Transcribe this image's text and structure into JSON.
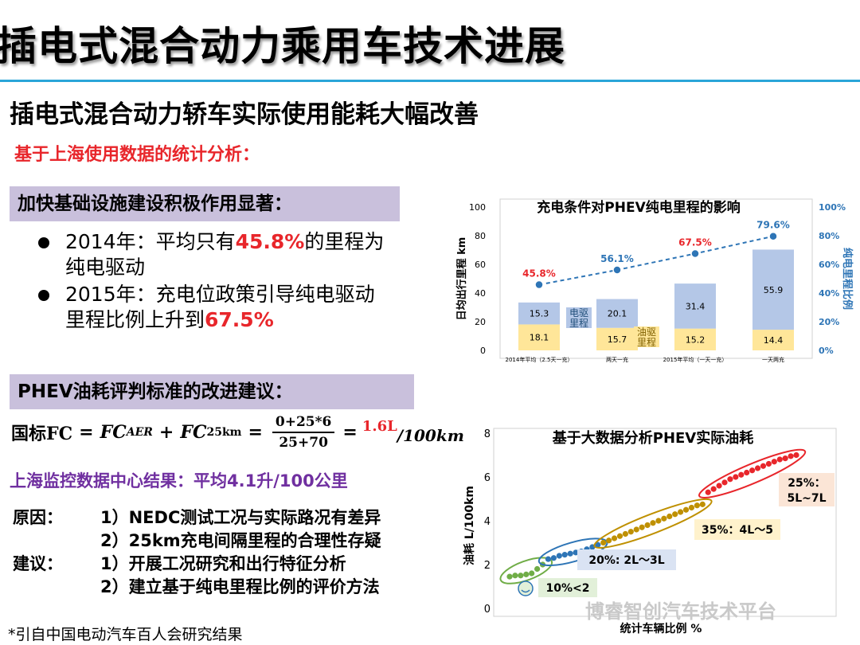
{
  "title": "插电式混合动力乘用车技术进展",
  "subtitle": "插电式混合动力轿车实际使用能耗大幅改善",
  "analysis_line": "基于上海使用数据的统计分析：",
  "section1": {
    "heading": "加快基础设施建设积极作用显著：",
    "bullets": [
      {
        "pre": "2014年：平均只有",
        "highlight": "45.8%",
        "post": "的里程为纯电驱动"
      },
      {
        "pre": "2015年：充电位政策引导纯电驱动里程比例上升到",
        "highlight": "67.5%",
        "post": ""
      }
    ]
  },
  "section2": {
    "heading": "PHEV油耗评判标准的改进建议：",
    "formula": {
      "lhs": "国标FC",
      "eq": "=",
      "term1": "FC",
      "term1_sub": "AER",
      "plus": "+",
      "term2": "FC",
      "term2_sub": "25km",
      "eq2": "=",
      "numerator": "0+25*6",
      "denominator": "25+70",
      "eq3": "=",
      "result": "1.6L",
      "unit": "/100km"
    },
    "shanghai_result": "上海监控数据中心结果：平均4.1升/100公里",
    "reasons_label": "原因：",
    "reasons": [
      "1）NEDC测试工况与实际路况有差异",
      "2）25km充电间隔里程的合理性存疑"
    ],
    "advice_label": "建议：",
    "advice": [
      "1）开展工况研究和出行特征分析",
      "2）建立基于纯电里程比例的评价方法"
    ]
  },
  "footnote": "*引自中国电动汽车百人会研究结果",
  "watermark": "博睿智创汽车技术平台",
  "colors": {
    "accent_blue": "#2aa5d8",
    "highlight_red": "#e8262b",
    "purple": "#7030a0",
    "band": "#c9c0dc",
    "bar_elec": "#b4c7e7",
    "bar_fuel": "#ffe699",
    "line_blue": "#2e75b6"
  },
  "chart_data": [
    {
      "type": "bar",
      "title": "充电条件对PHEV纯电里程的影响",
      "ylabel": "日均出行里程 km",
      "y2label": "纯电里程比例",
      "ylim": [
        0,
        100
      ],
      "y2lim": [
        0,
        100
      ],
      "y_ticks": [
        "0",
        "20",
        "40",
        "60",
        "80",
        "100"
      ],
      "y2_ticks": [
        "0%",
        "20%",
        "40%",
        "60%",
        "80%",
        "100%"
      ],
      "categories": [
        "2014年平均（2.5天一充）",
        "两天一充",
        "2015年平均（一天一充）",
        "一天两充"
      ],
      "series": [
        {
          "name": "油驱里程",
          "values": [
            18.1,
            15.7,
            15.2,
            14.4
          ]
        },
        {
          "name": "电驱里程",
          "values": [
            15.3,
            20.1,
            31.4,
            55.9
          ]
        }
      ],
      "ratio_line": {
        "values": [
          45.8,
          56.1,
          67.5,
          79.6
        ],
        "labels": [
          "45.8%",
          "56.1%",
          "67.5%",
          "79.6%"
        ]
      }
    },
    {
      "type": "scatter",
      "title": "基于大数据分析PHEV实际油耗",
      "xlabel": "统计车辆比例 %",
      "ylabel": "油耗 L/100km",
      "ylim": [
        0,
        8
      ],
      "y_ticks": [
        "0",
        "2",
        "4",
        "6",
        "8"
      ],
      "groups": [
        {
          "label": "10%<2",
          "color": "#70ad47",
          "points": [
            [
              1,
              1.45
            ],
            [
              2,
              1.5
            ],
            [
              3,
              1.5
            ],
            [
              4,
              1.55
            ],
            [
              5,
              1.6
            ],
            [
              6,
              1.8
            ],
            [
              7,
              2.0
            ]
          ]
        },
        {
          "label": "20%: 2L～3L",
          "color": "#2e75b6",
          "points": [
            [
              8,
              2.25
            ],
            [
              9,
              2.3
            ],
            [
              10,
              2.4
            ],
            [
              11,
              2.45
            ],
            [
              12,
              2.5
            ],
            [
              13,
              2.55
            ],
            [
              14,
              2.6
            ],
            [
              15,
              2.7
            ],
            [
              16,
              2.8
            ],
            [
              17,
              2.9
            ]
          ]
        },
        {
          "label": "35%：4L～5",
          "color": "#bf9000",
          "points": [
            [
              18,
              3.0
            ],
            [
              19,
              3.1
            ],
            [
              20,
              3.2
            ],
            [
              21,
              3.3
            ],
            [
              22,
              3.4
            ],
            [
              23,
              3.5
            ],
            [
              24,
              3.6
            ],
            [
              25,
              3.7
            ],
            [
              26,
              3.8
            ],
            [
              27,
              3.9
            ],
            [
              28,
              4.0
            ],
            [
              29,
              4.1
            ],
            [
              30,
              4.2
            ],
            [
              31,
              4.3
            ],
            [
              32,
              4.4
            ],
            [
              33,
              4.5
            ],
            [
              34,
              4.6
            ],
            [
              35,
              4.7
            ],
            [
              36,
              4.75
            ]
          ]
        },
        {
          "label": "25%：5L~7L",
          "color": "#e8262b",
          "points": [
            [
              37,
              5.3
            ],
            [
              38,
              5.45
            ],
            [
              39,
              5.6
            ],
            [
              40,
              5.75
            ],
            [
              41,
              5.9
            ],
            [
              42,
              6.0
            ],
            [
              43,
              6.1
            ],
            [
              44,
              6.2
            ],
            [
              45,
              6.3
            ],
            [
              46,
              6.4
            ],
            [
              47,
              6.5
            ],
            [
              48,
              6.6
            ],
            [
              49,
              6.7
            ],
            [
              50,
              6.8
            ],
            [
              51,
              6.85
            ],
            [
              52,
              6.95
            ],
            [
              53,
              7.0
            ]
          ]
        }
      ]
    }
  ]
}
